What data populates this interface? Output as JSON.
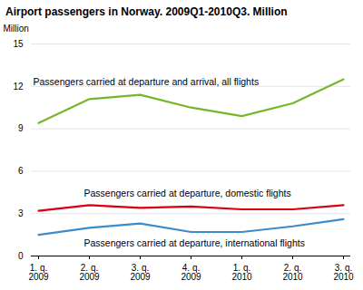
{
  "chart_data": {
    "type": "line",
    "title": "Airport passengers in Norway.  2009Q1-2010Q3. Million",
    "y_label": "Million",
    "categories": [
      "1. q.\n2009",
      "2. q.\n2009",
      "3. q.\n2009",
      "4. q.\n2009",
      "1. q.\n2010",
      "2. q.\n2010",
      "3. q.\n2010"
    ],
    "series": [
      {
        "name": "Passengers carried at departure and arrival, all flights",
        "color": "#78b52a",
        "values": [
          9.4,
          11.1,
          11.4,
          10.5,
          9.9,
          10.8,
          12.5
        ]
      },
      {
        "name": "Passengers carried at departure, domestic flights",
        "color": "#d7000f",
        "values": [
          3.2,
          3.6,
          3.4,
          3.5,
          3.3,
          3.3,
          3.6
        ]
      },
      {
        "name": "Passengers carried at departure, international flights",
        "color": "#3b8ccb",
        "values": [
          1.5,
          2.0,
          2.3,
          1.7,
          1.7,
          2.1,
          2.6
        ]
      }
    ],
    "ylim": [
      0,
      15
    ],
    "yticks": [
      0,
      3,
      6,
      9,
      12,
      15
    ],
    "grid": true
  }
}
